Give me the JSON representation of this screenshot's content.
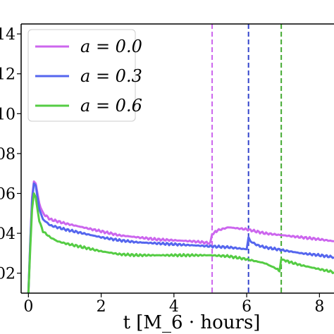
{
  "chart_data": {
    "type": "line",
    "xlabel": "t  [M_6 · hours]",
    "ylabel": "",
    "xlim": [
      -0.2,
      8.4
    ],
    "ylim": [
      0.01,
      0.145
    ],
    "x_ticks": [
      0,
      2,
      4,
      6,
      8
    ],
    "x_tick_labels": [
      "0",
      "2",
      "4",
      "6",
      "8"
    ],
    "y_ticks": [
      0.02,
      0.04,
      0.06,
      0.08,
      0.1,
      0.12,
      0.14
    ],
    "y_tick_labels": [
      "02",
      "04",
      "06",
      "08",
      "10",
      "12",
      "14"
    ],
    "legend_position": "top-left",
    "series": [
      {
        "name": "a = 0.0",
        "color": "#cc66ee",
        "x": [
          0.0,
          0.05,
          0.1,
          0.15,
          0.2,
          0.25,
          0.3,
          0.4,
          0.6,
          0.8,
          1.0,
          1.5,
          2.0,
          2.5,
          3.0,
          3.5,
          4.0,
          4.5,
          4.8,
          5.0,
          5.05,
          5.2,
          5.5,
          6.0,
          6.5,
          7.0,
          7.5,
          8.0,
          8.4
        ],
        "y": [
          0.01,
          0.035,
          0.058,
          0.066,
          0.065,
          0.06,
          0.055,
          0.05,
          0.047,
          0.046,
          0.045,
          0.043,
          0.041,
          0.039,
          0.038,
          0.037,
          0.0365,
          0.036,
          0.0355,
          0.035,
          0.0395,
          0.0415,
          0.043,
          0.042,
          0.04,
          0.039,
          0.038,
          0.037,
          0.036
        ]
      },
      {
        "name": "a = 0.3",
        "color": "#5566ee",
        "x": [
          0.0,
          0.05,
          0.1,
          0.15,
          0.2,
          0.25,
          0.3,
          0.4,
          0.6,
          0.8,
          1.0,
          1.5,
          2.0,
          2.5,
          3.0,
          3.5,
          4.0,
          4.5,
          5.0,
          5.5,
          6.0,
          6.05,
          6.1,
          6.3,
          6.5,
          7.0,
          7.5,
          8.0,
          8.4
        ],
        "y": [
          0.01,
          0.035,
          0.056,
          0.065,
          0.064,
          0.058,
          0.052,
          0.047,
          0.044,
          0.043,
          0.042,
          0.04,
          0.038,
          0.0365,
          0.0355,
          0.035,
          0.0345,
          0.034,
          0.0335,
          0.033,
          0.032,
          0.0375,
          0.036,
          0.034,
          0.033,
          0.0315,
          0.03,
          0.029,
          0.028
        ]
      },
      {
        "name": "a = 0.6",
        "color": "#55cc44",
        "x": [
          0.0,
          0.05,
          0.1,
          0.15,
          0.2,
          0.25,
          0.3,
          0.4,
          0.6,
          0.8,
          1.0,
          1.5,
          2.0,
          2.5,
          3.0,
          3.5,
          4.0,
          4.5,
          5.0,
          5.5,
          6.0,
          6.5,
          6.85,
          6.9,
          6.95,
          7.2,
          7.5,
          8.0,
          8.4
        ],
        "y": [
          0.01,
          0.032,
          0.052,
          0.06,
          0.058,
          0.052,
          0.046,
          0.041,
          0.038,
          0.036,
          0.035,
          0.033,
          0.031,
          0.0295,
          0.029,
          0.029,
          0.029,
          0.029,
          0.029,
          0.0285,
          0.027,
          0.025,
          0.022,
          0.0205,
          0.027,
          0.0255,
          0.024,
          0.022,
          0.0205
        ]
      }
    ],
    "vlines": [
      {
        "x": 5.05,
        "color": "#cc66ee",
        "style": "dashed"
      },
      {
        "x": 6.05,
        "color": "#3344cc",
        "style": "dashed"
      },
      {
        "x": 6.95,
        "color": "#44aa33",
        "style": "dashed"
      }
    ]
  }
}
